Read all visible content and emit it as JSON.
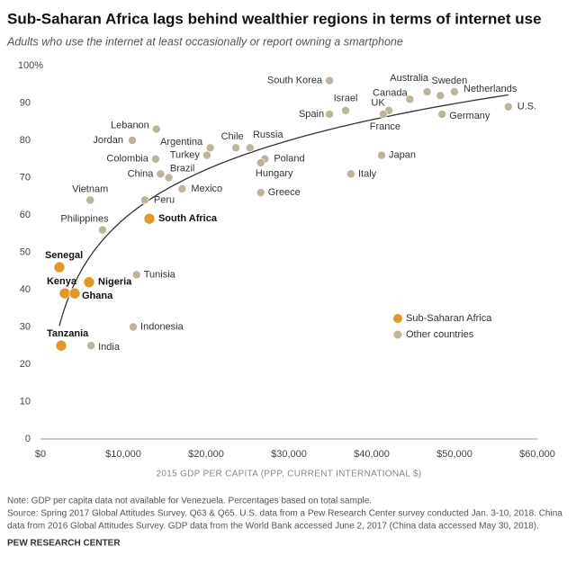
{
  "chart_data": {
    "type": "scatter",
    "title": "Sub-Saharan Africa lags behind wealthier regions in terms of internet use",
    "subtitle": "Adults who use the internet at least occasionally or report owning a smartphone",
    "x_label": "2015 GDP PER CAPITA (PPP, CURRENT INTERNATIONAL $)",
    "xlim": [
      0,
      60000
    ],
    "ylim": [
      0,
      100
    ],
    "xticks": [
      {
        "value": 0,
        "label": "$0"
      },
      {
        "value": 10000,
        "label": "$10,000"
      },
      {
        "value": 20000,
        "label": "$20,000"
      },
      {
        "value": 30000,
        "label": "$30,000"
      },
      {
        "value": 40000,
        "label": "$40,000"
      },
      {
        "value": 50000,
        "label": "$50,000"
      },
      {
        "value": 60000,
        "label": "$60,000"
      }
    ],
    "yticks": [
      0,
      10,
      20,
      30,
      40,
      50,
      60,
      70,
      80,
      90,
      {
        "value": 100,
        "label": "100%"
      }
    ],
    "series": [
      {
        "name": "Sub-Saharan Africa",
        "color": "#e0982b",
        "labels": [
          "South Africa",
          "Senegal",
          "Nigeria",
          "Kenya",
          "Ghana",
          "Tanzania"
        ],
        "x": [
          13150,
          2280,
          5870,
          2930,
          4130,
          2500
        ],
        "values": [
          59,
          46,
          42,
          39,
          39,
          25
        ]
      },
      {
        "name": "Other countries",
        "color": "#bdb49b",
        "labels": [
          "South Korea",
          "Australia",
          "Sweden",
          "Netherlands",
          "Israel",
          "Canada",
          "Spain",
          "UK",
          "France",
          "Germany",
          "U.S.",
          "Lebanon",
          "Jordan",
          "Chile",
          "Russia",
          "Argentina",
          "Turkey",
          "Colombia",
          "Poland",
          "Hungary",
          "Japan",
          "China",
          "Brazil",
          "Italy",
          "Mexico",
          "Greece",
          "Vietnam",
          "Peru",
          "Philippines",
          "Tunisia",
          "Indonesia",
          "India"
        ],
        "x": [
          34900,
          46700,
          48300,
          50000,
          36850,
          44600,
          34900,
          42070,
          41400,
          48500,
          56500,
          14000,
          11090,
          23600,
          25300,
          20500,
          20100,
          13900,
          27100,
          26600,
          41200,
          14500,
          15500,
          37500,
          17100,
          26600,
          6000,
          12600,
          7500,
          11600,
          11200,
          6100
        ],
        "values": [
          96,
          93,
          92,
          93,
          88,
          91,
          87,
          88,
          87,
          87,
          89,
          83,
          80,
          78,
          78,
          78,
          76,
          75,
          75,
          74,
          76,
          71,
          70,
          71,
          67,
          66,
          64,
          64,
          56,
          44,
          30,
          25
        ]
      }
    ]
  },
  "notes": "Note: GDP per capita data not available for Venezuela. Percentages based on total sample.",
  "source": [
    "Source: Spring 2017 Global Attitudes Survey. Q63 & Q65. U.S. data from a Pew Research Center survey conducted Jan. 3-10, 2018. China",
    "data from 2016 Global Attitudes Survey. GDP data from the World Bank accessed June 2, 2017 (China data accessed May 30, 2018)."
  ],
  "footer": "PEW RESEARCH CENTER"
}
